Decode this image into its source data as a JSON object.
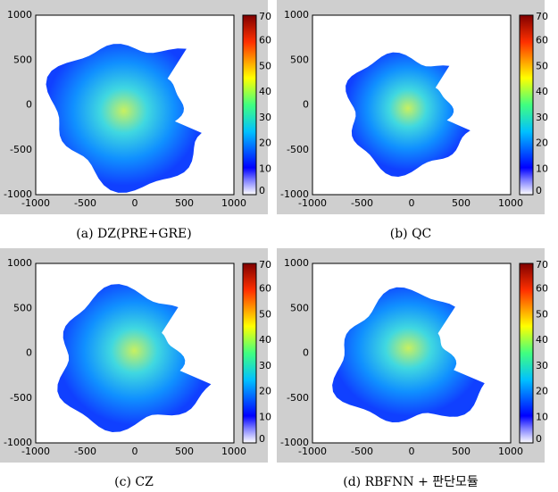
{
  "axes": {
    "xticks": [
      -1000,
      -500,
      0,
      500,
      1000
    ],
    "yticks": [
      1000,
      500,
      0,
      -500,
      -1000
    ],
    "colorbar_ticks": [
      70,
      60,
      50,
      40,
      30,
      20,
      10,
      0
    ]
  },
  "panels": [
    {
      "caption": "(a) DZ(PRE+GRE)"
    },
    {
      "caption": "(b) QC"
    },
    {
      "caption": "(c) CZ"
    },
    {
      "caption": "(d) RBFNN + 판단모듈"
    }
  ]
}
